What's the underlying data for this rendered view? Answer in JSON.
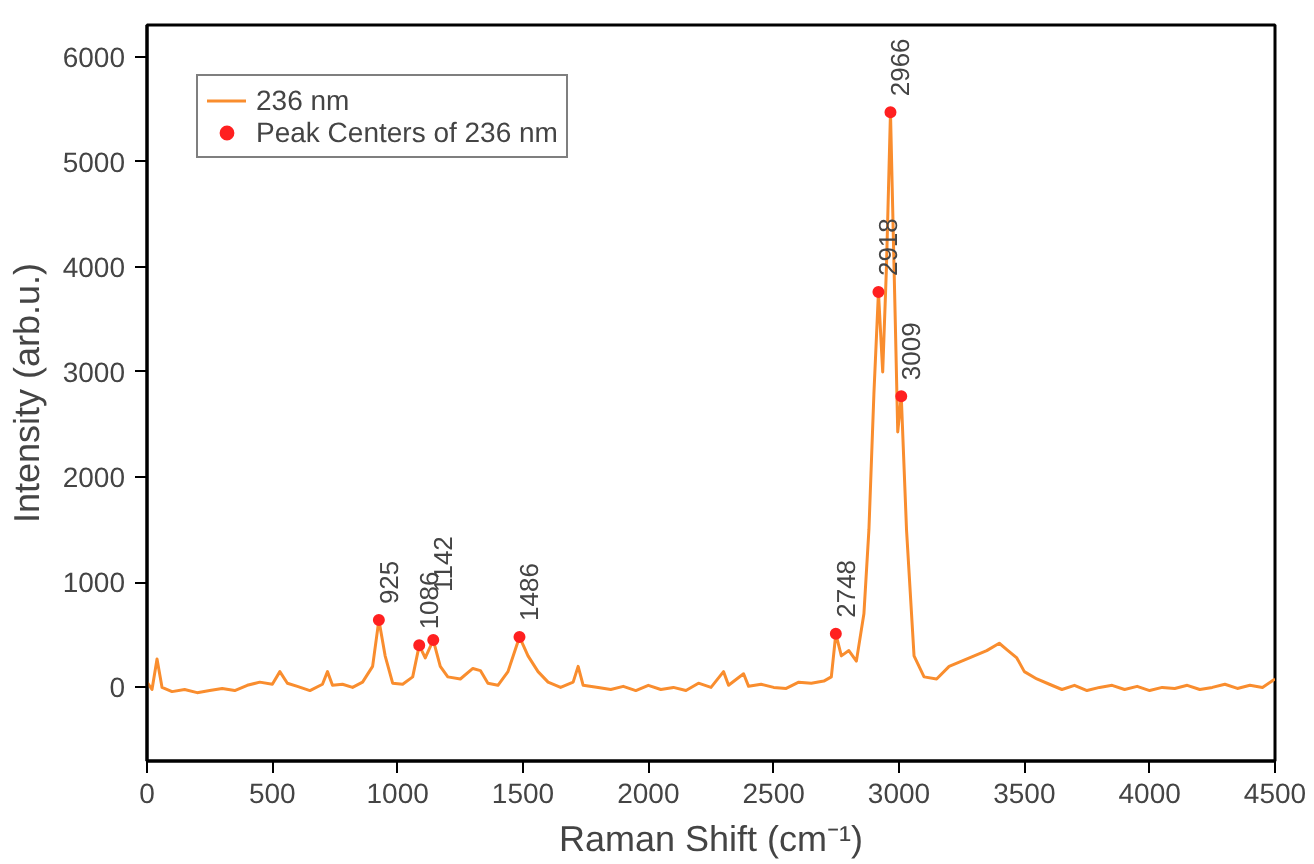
{
  "chart_data": {
    "type": "line",
    "xlabel": "Raman Shift (cm⁻¹)",
    "ylabel": "Intensity (arb.u.)",
    "xlim": [
      0,
      4500
    ],
    "ylim": [
      -700,
      6300
    ],
    "xticks": [
      0,
      500,
      1000,
      1500,
      2000,
      2500,
      3000,
      3500,
      4000,
      4500
    ],
    "yticks": [
      0,
      1000,
      2000,
      3000,
      4000,
      5000,
      6000
    ],
    "grid": false,
    "legend": "top left",
    "series": [
      {
        "name": "236 nm",
        "color": "#f98d2e",
        "x": [
          0,
          20,
          40,
          60,
          100,
          150,
          200,
          250,
          300,
          350,
          400,
          450,
          500,
          530,
          560,
          600,
          650,
          700,
          720,
          740,
          780,
          820,
          860,
          900,
          925,
          950,
          980,
          1020,
          1060,
          1086,
          1110,
          1142,
          1170,
          1200,
          1250,
          1300,
          1330,
          1360,
          1400,
          1440,
          1486,
          1520,
          1560,
          1600,
          1650,
          1700,
          1720,
          1740,
          1800,
          1850,
          1900,
          1950,
          2000,
          2050,
          2100,
          2150,
          2200,
          2250,
          2300,
          2320,
          2380,
          2400,
          2450,
          2500,
          2550,
          2600,
          2650,
          2700,
          2730,
          2748,
          2770,
          2800,
          2830,
          2860,
          2880,
          2900,
          2918,
          2935,
          2950,
          2966,
          2985,
          2995,
          3009,
          3030,
          3060,
          3100,
          3150,
          3200,
          3250,
          3300,
          3350,
          3400,
          3430,
          3470,
          3500,
          3550,
          3600,
          3650,
          3700,
          3750,
          3800,
          3850,
          3900,
          3950,
          4000,
          4050,
          4100,
          4150,
          4200,
          4250,
          4300,
          4350,
          4400,
          4450,
          4500
        ],
        "values": [
          50,
          -20,
          270,
          0,
          -40,
          -20,
          -50,
          -30,
          -10,
          -30,
          20,
          50,
          30,
          150,
          40,
          10,
          -30,
          30,
          150,
          20,
          30,
          0,
          50,
          200,
          640,
          300,
          40,
          30,
          100,
          400,
          280,
          450,
          200,
          100,
          80,
          180,
          160,
          40,
          20,
          150,
          480,
          300,
          150,
          50,
          0,
          50,
          200,
          20,
          0,
          -20,
          10,
          -30,
          20,
          -20,
          0,
          -30,
          40,
          0,
          150,
          20,
          130,
          10,
          30,
          0,
          -10,
          50,
          40,
          60,
          100,
          510,
          300,
          350,
          250,
          700,
          1500,
          2800,
          3760,
          3000,
          4000,
          5470,
          3500,
          2430,
          2770,
          1500,
          300,
          100,
          80,
          200,
          250,
          300,
          350,
          420,
          360,
          280,
          150,
          80,
          30,
          -20,
          20,
          -30,
          0,
          20,
          -20,
          10,
          -30,
          0,
          -10,
          20,
          -20,
          0,
          30,
          -10,
          20,
          0,
          80
        ]
      },
      {
        "name": "Peak Centers of 236 nm",
        "type": "scatter",
        "color": "#ff2020",
        "x": [
          925,
          1086,
          1142,
          1486,
          2748,
          2918,
          2966,
          3009
        ],
        "values": [
          640,
          400,
          450,
          480,
          510,
          3760,
          5470,
          2770
        ]
      }
    ],
    "annotations": [
      {
        "text": "925",
        "x": 925,
        "y": 640
      },
      {
        "text": "1086",
        "x": 1086,
        "y": 400
      },
      {
        "text": "1142",
        "x": 1142,
        "y": 450
      },
      {
        "text": "1486",
        "x": 1486,
        "y": 480
      },
      {
        "text": "2748",
        "x": 2748,
        "y": 510
      },
      {
        "text": "2918",
        "x": 2918,
        "y": 3760
      },
      {
        "text": "2966",
        "x": 2966,
        "y": 5470
      },
      {
        "text": "3009",
        "x": 3009,
        "y": 2770
      }
    ]
  }
}
